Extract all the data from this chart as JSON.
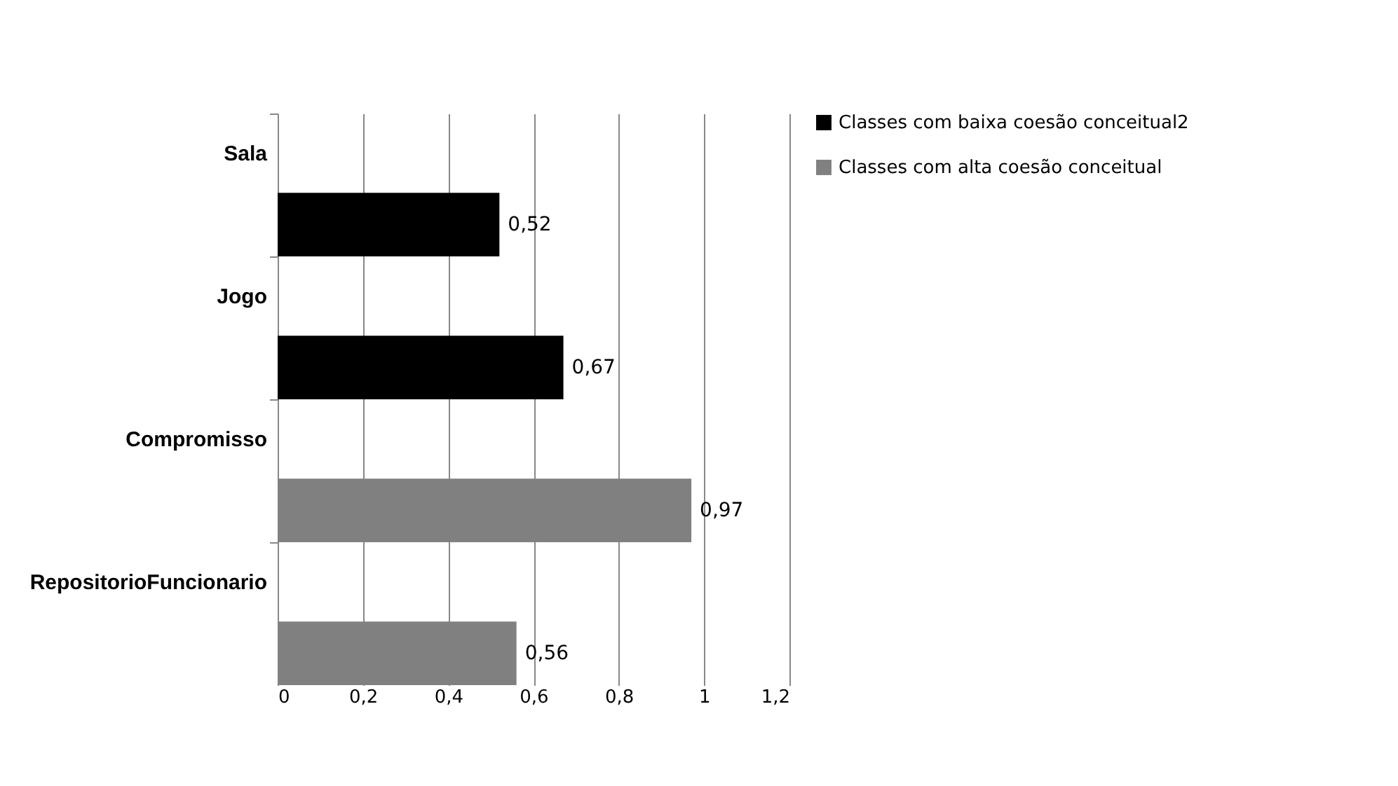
{
  "chart_data": {
    "type": "bar",
    "orientation": "horizontal",
    "categories": [
      "Sala",
      "Jogo",
      "Compromisso",
      "RepositorioFuncionario"
    ],
    "series": [
      {
        "name": "Classes com baixa coesão conceitual2",
        "color": "#000000",
        "values": [
          0.52,
          0.67,
          null,
          null
        ]
      },
      {
        "name": "Classes com alta coesão conceitual",
        "color": "#808080",
        "values": [
          null,
          null,
          0.97,
          0.56
        ]
      }
    ],
    "xlim": [
      0,
      1.2
    ],
    "xticks": [
      0,
      {
        "value": 0.2,
        "label": "0,2"
      },
      {
        "value": 0.4,
        "label": "0,4"
      },
      {
        "value": 0.6,
        "label": "0,6"
      },
      {
        "value": 0.8,
        "label": "0,8"
      },
      1,
      {
        "value": 1.2,
        "label": "1,2"
      }
    ],
    "value_labels": [
      "0,52",
      "0,67",
      "0,97",
      "0,56"
    ],
    "grid": "x",
    "legend": "right"
  }
}
